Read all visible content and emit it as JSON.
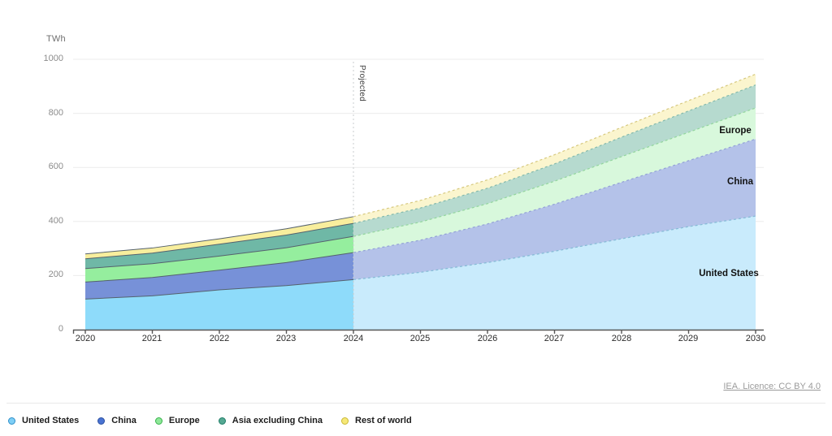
{
  "chart_data": {
    "type": "area",
    "stacked": true,
    "unit_label": "TWh",
    "x": [
      2020,
      2021,
      2022,
      2023,
      2024,
      2025,
      2026,
      2027,
      2028,
      2029,
      2030
    ],
    "yticks": [
      0,
      200,
      400,
      600,
      800,
      1000
    ],
    "ylim": [
      0,
      1000
    ],
    "grid": true,
    "legend_position": "bottom-left",
    "projection_start_index": 4,
    "projected_label": "Projected",
    "series": [
      {
        "name": "United States",
        "values": [
          113,
          125,
          147,
          163,
          185,
          212,
          248,
          290,
          336,
          381,
          420
        ],
        "fill": "#8EDBFA",
        "fill_projected": "#C9EBFC",
        "stroke": "#55626E",
        "stroke_projected": "#85BBD6",
        "legend_fill": "#7ECFF6",
        "legend_ring": "#2E8FC9"
      },
      {
        "name": "China",
        "values": [
          63,
          68,
          73,
          85,
          100,
          119,
          143,
          174,
          209,
          244,
          285
        ],
        "fill": "#7791D8",
        "fill_projected": "#B4C2E9",
        "stroke": "#55626E",
        "stroke_projected": "#93A2D6",
        "legend_fill": "#4A73D2",
        "legend_ring": "#2A4FA0"
      },
      {
        "name": "Europe",
        "values": [
          50,
          51,
          52,
          55,
          60,
          67,
          75,
          85,
          95,
          105,
          115
        ],
        "fill": "#95EE9E",
        "fill_projected": "#D8F8DC",
        "stroke": "#55626E",
        "stroke_projected": "#93D69D",
        "legend_fill": "#8FE899",
        "legend_ring": "#35B24A"
      },
      {
        "name": "Asia excluding China",
        "values": [
          36,
          39,
          44,
          47,
          48,
          52,
          57,
          64,
          72,
          79,
          85
        ],
        "fill": "#6FB8A6",
        "fill_projected": "#B6DACF",
        "stroke": "#55626E",
        "stroke_projected": "#84BAAC",
        "legend_fill": "#55A892",
        "legend_ring": "#1F7D68"
      },
      {
        "name": "Rest of world",
        "values": [
          18,
          19,
          20,
          23,
          25,
          28,
          31,
          34,
          36,
          38,
          40
        ],
        "fill": "#F8EE9D",
        "fill_projected": "#FBF5CE",
        "stroke": "#55626E",
        "stroke_projected": "#D6C87E",
        "legend_fill": "#F6E878",
        "legend_ring": "#C9B832"
      }
    ],
    "area_labels": [
      {
        "text": "United States"
      },
      {
        "text": "China"
      },
      {
        "text": "Europe"
      }
    ],
    "grid_color": "#ECECEC",
    "axis_color": "#565656",
    "projection_line_color": "#C9CDCF"
  },
  "attribution": {
    "text": "IEA. Licence: CC BY 4.0"
  }
}
